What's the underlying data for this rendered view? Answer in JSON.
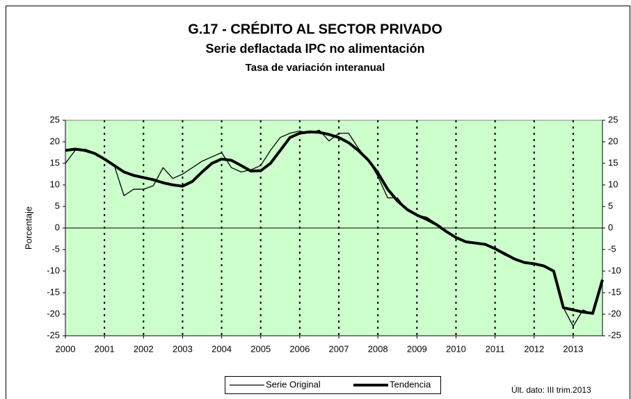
{
  "chart_data": {
    "type": "line",
    "title": "G.17 - CRÉDITO AL SECTOR PRIVADO",
    "subtitle": "Serie deflactada IPC no alimentación",
    "subtitle2": "Tasa de variación interanual",
    "y_label": "Porcentaje",
    "annotation": "Últ. dato: III trim.2013",
    "x": [
      2000,
      2000.25,
      2000.5,
      2000.75,
      2001,
      2001.25,
      2001.5,
      2001.75,
      2002,
      2002.25,
      2002.5,
      2002.75,
      2003,
      2003.25,
      2003.5,
      2003.75,
      2004,
      2004.25,
      2004.5,
      2004.75,
      2005,
      2005.25,
      2005.5,
      2005.75,
      2006,
      2006.25,
      2006.5,
      2006.75,
      2007,
      2007.25,
      2007.5,
      2007.75,
      2008,
      2008.25,
      2008.5,
      2008.75,
      2009,
      2009.25,
      2009.5,
      2009.75,
      2010,
      2010.25,
      2010.5,
      2010.75,
      2011,
      2011.25,
      2011.5,
      2011.75,
      2012,
      2012.25,
      2012.5,
      2012.75,
      2013,
      2013.25,
      2013.5,
      2013.75
    ],
    "series": [
      {
        "name": "Serie Original",
        "color": "#000000",
        "width": 1.3,
        "values": [
          15,
          18,
          18.3,
          17.5,
          16,
          14.5,
          7.5,
          9,
          9,
          9.8,
          14,
          11.5,
          12.5,
          14,
          15.5,
          16.5,
          17.5,
          14,
          13,
          13.5,
          14.5,
          18,
          21,
          22,
          22.5,
          22,
          22.7,
          20.2,
          22,
          22,
          18.5,
          15.8,
          12,
          7,
          7,
          4,
          3,
          2.5,
          1,
          -0.8,
          -2.5,
          -3.2,
          -3.5,
          -3.8,
          -5,
          -6.3,
          -7.2,
          -8,
          -8.3,
          -8.8,
          -10,
          -18.5,
          -22.8,
          -19,
          -20,
          -12
        ]
      },
      {
        "name": "Tendencia",
        "color": "#000000",
        "width": 4,
        "values": [
          18,
          18.3,
          18,
          17.3,
          16,
          14.5,
          13,
          12.2,
          11.7,
          11.2,
          10.5,
          10,
          9.7,
          10.8,
          13,
          15,
          16,
          15.7,
          14.5,
          13.2,
          13.3,
          15,
          18,
          21,
          22,
          22.3,
          22.2,
          21.7,
          21,
          19.8,
          18,
          15.8,
          12.8,
          9,
          6.3,
          4.3,
          3,
          2,
          0.8,
          -0.8,
          -2.2,
          -3.2,
          -3.5,
          -3.8,
          -4.8,
          -6,
          -7.2,
          -8,
          -8.3,
          -8.8,
          -10,
          -18.5,
          -19,
          -19.5,
          -19.8,
          -12
        ]
      }
    ],
    "xlim": [
      2000,
      2013.75
    ],
    "xticks": [
      2000,
      2001,
      2002,
      2003,
      2004,
      2005,
      2006,
      2007,
      2008,
      2009,
      2010,
      2011,
      2012,
      2013
    ],
    "ylim": [
      -25,
      25
    ],
    "yticks": [
      -25,
      -20,
      -15,
      -10,
      -5,
      0,
      5,
      10,
      15,
      20,
      25
    ],
    "y2lim": [
      -25,
      25
    ],
    "y2ticks": [
      -25,
      -20,
      -15,
      -10,
      -5,
      0,
      5,
      10,
      15,
      20,
      25
    ],
    "grid": "x-dashed",
    "plot_background": "#ccffcc",
    "legend": "bottom"
  }
}
